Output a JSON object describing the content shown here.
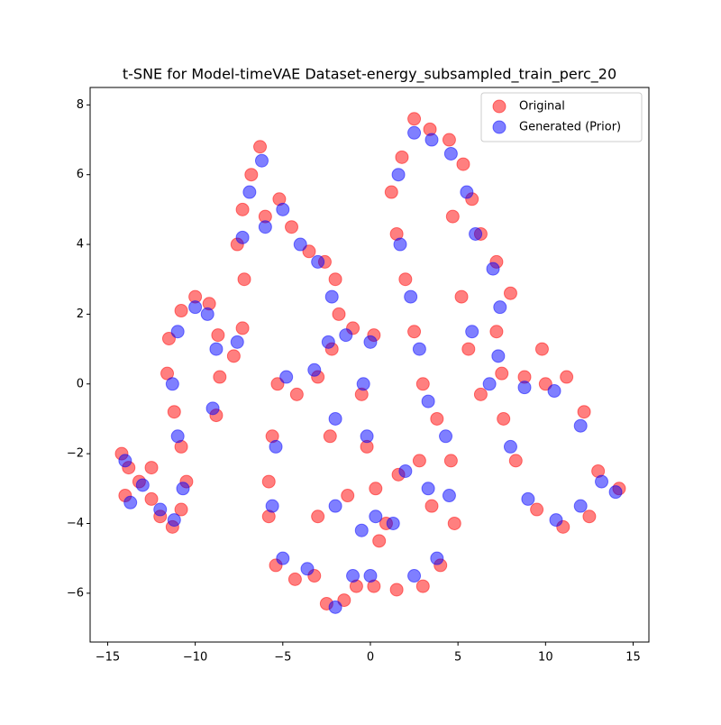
{
  "chart_data": {
    "type": "scatter",
    "title": "t-SNE for Model-timeVAE Dataset-energy_subsampled_train_perc_20",
    "xlim": [
      -16,
      15.9
    ],
    "ylim": [
      -7.4,
      8.5
    ],
    "xticks": [
      {
        "value": -15,
        "label": "−15"
      },
      {
        "value": -10,
        "label": "−10"
      },
      {
        "value": -5,
        "label": "−5"
      },
      0,
      5,
      10,
      15
    ],
    "yticks": [
      {
        "value": -6,
        "label": "−6"
      },
      {
        "value": -4,
        "label": "−4"
      },
      {
        "value": -2,
        "label": "−2"
      },
      0,
      2,
      4,
      6,
      8
    ],
    "legend": "upper right",
    "series": [
      {
        "name": "Original",
        "color": "#ff0000",
        "x": [
          -14.2,
          -13.8,
          -13.2,
          -12.5,
          -12,
          -11.3,
          -10.8,
          -10.5,
          -10.8,
          -11.2,
          -11.6,
          -11.5,
          -10.8,
          -10,
          -9.2,
          -8.7,
          -8.6,
          -8.8,
          -7.8,
          -7.3,
          -14,
          -12.5,
          -6.3,
          -6.8,
          -7.3,
          -7.6,
          -7.2,
          -6,
          -5.2,
          -4.5,
          -3.5,
          -2.6,
          -2,
          -1.8,
          -2.2,
          -3,
          -4.2,
          -5.3,
          -5.6,
          -5.8,
          -5.8,
          -5.4,
          -4.3,
          -3.2,
          -2.5,
          -1.5,
          -0.8,
          0.2,
          0.5,
          0.3,
          -0.2,
          -0.5,
          0.2,
          -1,
          -2.3,
          -1.3,
          -3,
          1.8,
          2.5,
          3.4,
          4.5,
          5.3,
          5.8,
          6.3,
          7.2,
          8,
          7.2,
          7.5,
          8.8,
          10,
          11.2,
          12.2,
          13,
          14.2,
          12.5,
          11,
          9.5,
          8.3,
          7.6,
          6.3,
          5.6,
          5.2,
          1.2,
          1.5,
          2,
          2.5,
          3,
          3.8,
          4.6,
          4.8,
          4,
          3,
          1.5,
          0.9,
          1.6,
          2.8,
          3.5,
          9.8,
          4.7
        ],
        "y": [
          -2,
          -2.4,
          -2.8,
          -3.3,
          -3.8,
          -4.1,
          -3.6,
          -2.8,
          -1.8,
          -0.8,
          0.3,
          1.3,
          2.1,
          2.5,
          2.3,
          1.4,
          0.2,
          -0.9,
          0.8,
          1.6,
          -3.2,
          -2.4,
          6.8,
          6,
          5,
          4,
          3,
          4.8,
          5.3,
          4.5,
          3.8,
          3.5,
          3,
          2,
          1,
          0.2,
          -0.3,
          0,
          -1.5,
          -2.8,
          -3.8,
          -5.2,
          -5.6,
          -5.5,
          -6.3,
          -6.2,
          -5.8,
          -5.8,
          -4.5,
          -3,
          -1.8,
          -0.3,
          1.4,
          1.6,
          -1.5,
          -3.2,
          -3.8,
          6.5,
          7.6,
          7.3,
          7,
          6.3,
          5.3,
          4.3,
          3.5,
          2.6,
          1.5,
          0.3,
          0.2,
          0,
          0.2,
          -0.8,
          -2.5,
          -3,
          -3.8,
          -4.1,
          -3.6,
          -2.2,
          -1,
          -0.3,
          1,
          2.5,
          5.5,
          4.3,
          3,
          1.5,
          0,
          -1,
          -2.2,
          -4,
          -5.2,
          -5.8,
          -5.9,
          -4,
          -2.6,
          -2.2,
          -3.5,
          1,
          4.8
        ]
      },
      {
        "name": "Generated (Prior)",
        "color": "#0000ff",
        "x": [
          -14,
          -13,
          -12,
          -11.2,
          -10.7,
          -11,
          -11.3,
          -11,
          -10,
          -9.3,
          -8.8,
          -9,
          -7.6,
          -6.2,
          -6.9,
          -7.3,
          -6,
          -5,
          -4,
          -3,
          -2.2,
          -2.4,
          -3.2,
          -4.8,
          -5.4,
          -5.6,
          -5,
          -3.6,
          -2,
          -1,
          0,
          0.3,
          -0.2,
          -0.4,
          0,
          -1.4,
          -2,
          -2,
          2.5,
          3.5,
          4.6,
          5.5,
          6,
          7,
          7.4,
          7.3,
          8.8,
          10.5,
          12,
          13.2,
          14,
          12,
          10.6,
          9,
          8,
          6.8,
          5.8,
          1.6,
          1.7,
          2.3,
          2.8,
          3.3,
          4.3,
          4.5,
          3.8,
          2.5,
          1.3,
          2,
          3.3,
          -0.5,
          -13.7
        ],
        "y": [
          -2.2,
          -2.9,
          -3.6,
          -3.9,
          -3,
          -1.5,
          0,
          1.5,
          2.2,
          2,
          1,
          -0.7,
          1.2,
          6.4,
          5.5,
          4.2,
          4.5,
          5,
          4,
          3.5,
          2.5,
          1.2,
          0.4,
          0.2,
          -1.8,
          -3.5,
          -5,
          -5.3,
          -6.4,
          -5.5,
          -5.5,
          -3.8,
          -1.5,
          0,
          1.2,
          1.4,
          -1,
          -3.5,
          7.2,
          7,
          6.6,
          5.5,
          4.3,
          3.3,
          2.2,
          0.8,
          -0.1,
          -0.2,
          -1.2,
          -2.8,
          -3.1,
          -3.5,
          -3.9,
          -3.3,
          -1.8,
          0,
          1.5,
          6,
          4,
          2.5,
          1,
          -0.5,
          -1.5,
          -3.2,
          -5,
          -5.5,
          -4,
          -2.5,
          -3,
          -4.2,
          -3.4
        ]
      }
    ]
  }
}
